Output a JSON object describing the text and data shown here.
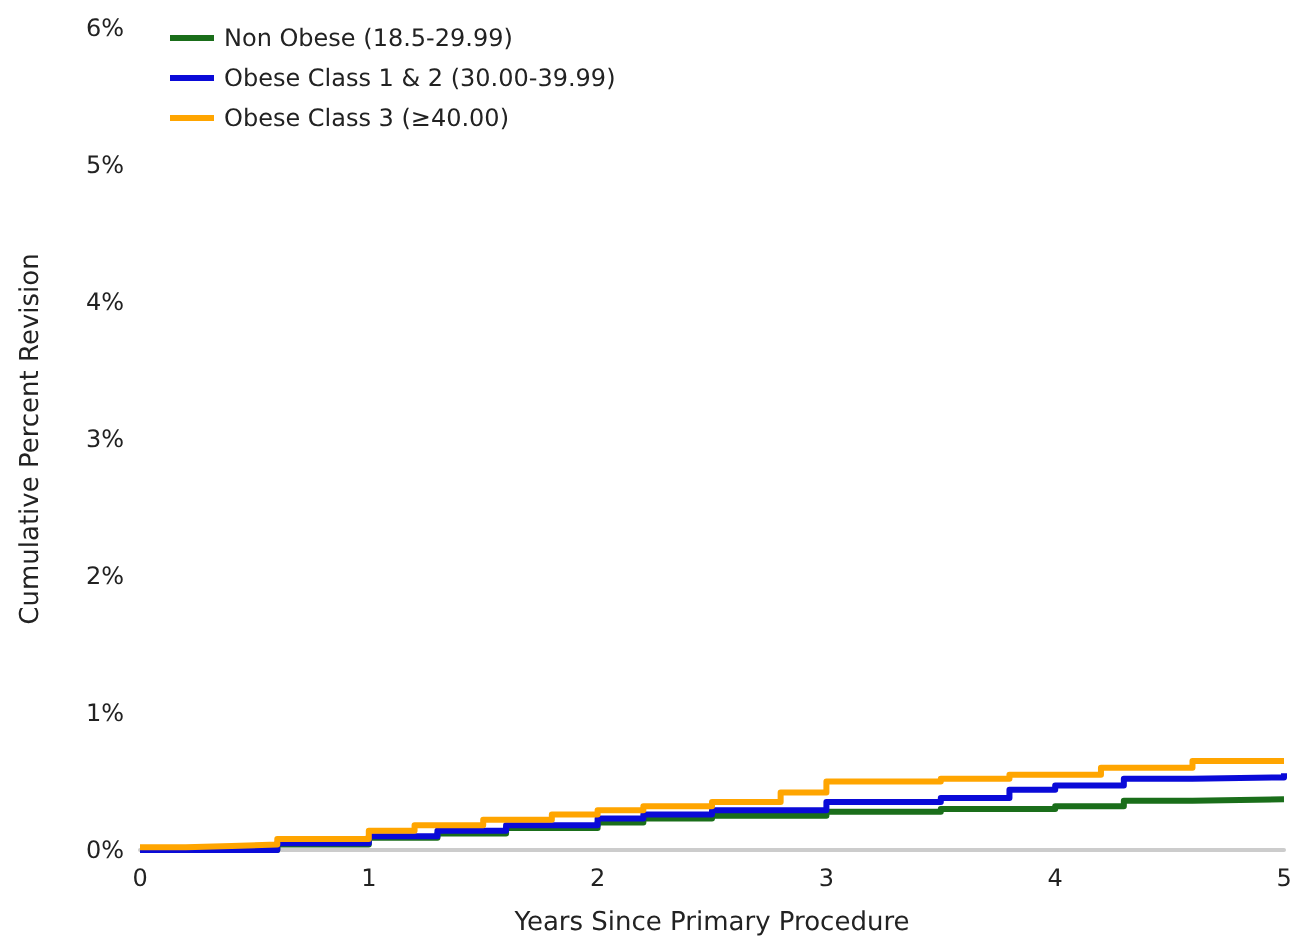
{
  "chart_data": {
    "type": "step",
    "xlabel": "Years Since Primary Procedure",
    "ylabel": "Cumulative Percent Revision",
    "xlim": [
      0,
      5
    ],
    "xticks": [
      0,
      1,
      2,
      3,
      4,
      5
    ],
    "ylim": [
      0,
      6
    ],
    "yticks": [
      {
        "value": 0,
        "label": "0%"
      },
      {
        "value": 1,
        "label": "1%"
      },
      {
        "value": 2,
        "label": "2%"
      },
      {
        "value": 3,
        "label": "3%"
      },
      {
        "value": 4,
        "label": "4%"
      },
      {
        "value": 5,
        "label": "5%"
      },
      {
        "value": 6,
        "label": "6%"
      }
    ],
    "grid": false,
    "legend": "top left",
    "marker": "none",
    "line_style": "solid",
    "series": [
      {
        "name": "Non Obese (18.5-29.99)",
        "color": "#1a6e1a",
        "x": [
          0,
          0.3,
          0.6,
          1,
          1.3,
          1.6,
          2,
          2.2,
          2.5,
          3,
          3.5,
          4,
          4.3,
          4.6,
          5
        ],
        "values": [
          0,
          0,
          0.04,
          0.09,
          0.12,
          0.16,
          0.2,
          0.23,
          0.25,
          0.28,
          0.3,
          0.32,
          0.36,
          0.37,
          0.37
        ]
      },
      {
        "name": "Obese Class 1 & 2 (30.00-39.99)",
        "color": "#0a0ad8",
        "x": [
          0,
          0.3,
          0.6,
          1,
          1.3,
          1.6,
          2,
          2.2,
          2.5,
          3,
          3.5,
          3.8,
          4,
          4.3,
          4.6,
          5
        ],
        "values": [
          0,
          0,
          0.05,
          0.1,
          0.14,
          0.18,
          0.23,
          0.26,
          0.29,
          0.35,
          0.38,
          0.44,
          0.47,
          0.52,
          0.53,
          0.56
        ]
      },
      {
        "name": "Obese Class 3 (≥40.00)",
        "color": "#ffa500",
        "x": [
          0,
          0.2,
          0.4,
          0.6,
          1,
          1.2,
          1.5,
          1.8,
          2,
          2.2,
          2.5,
          2.8,
          3,
          3.5,
          3.8,
          4.2,
          4.6,
          5
        ],
        "values": [
          0.02,
          0.03,
          0.04,
          0.08,
          0.14,
          0.18,
          0.22,
          0.26,
          0.29,
          0.32,
          0.35,
          0.42,
          0.5,
          0.52,
          0.55,
          0.6,
          0.65,
          0.66
        ]
      }
    ]
  }
}
